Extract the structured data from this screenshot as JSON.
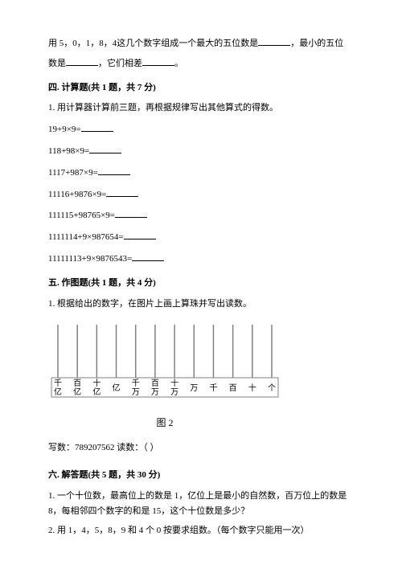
{
  "intro": {
    "line1a": "用 5，0，1，8，4这几个数字组成一个最大的五位数是",
    "line1b": "，最小的五位",
    "line2a": "数是",
    "line2b": "，它们相差",
    "line2c": "。"
  },
  "section4": {
    "title": "四. 计算题(共 1 题，共 7 分)",
    "instr": "1. 用计算器计算前三题，再根据规律写出其他算式的得数。",
    "eq1": "19+9×9=",
    "eq2": "118+98×9=",
    "eq3": "1117+987×9=",
    "eq4": "11116+9876×9=",
    "eq5": "111115+98765×9=",
    "eq6": "1111114+9×987654=",
    "eq7": "11111113+9×9876543="
  },
  "section5": {
    "title": "五. 作图题(共 1 题，共 4 分)",
    "instr": "1. 根据给出的数字，在图片上画上算珠并写出读数。",
    "labels": [
      "千亿",
      "百亿",
      "十亿",
      "亿",
      "千万",
      "百万",
      "十万",
      "万",
      "千",
      "百",
      "十",
      "个"
    ],
    "caption": "图 2",
    "write": "写数：789207562  读数：（        ）"
  },
  "section6": {
    "title": "六. 解答题(共 5 题，共 30 分)",
    "q1": "1. 一个十位数，最高位上的数是 1，亿位上是最小的自然数，百万位上的数是8，每相邻四个数字的和是 15，这个十位数是多少？",
    "q2": "2. 用 1，4，5，8，9 和 4 个 0 按要求组数。（每个数字只能用一次）"
  },
  "style": {
    "abacus_width": 290,
    "abacus_height": 110,
    "rod_count": 12,
    "rod_color": "#808080",
    "frame_color": "#808080",
    "text_color": "#000000"
  }
}
